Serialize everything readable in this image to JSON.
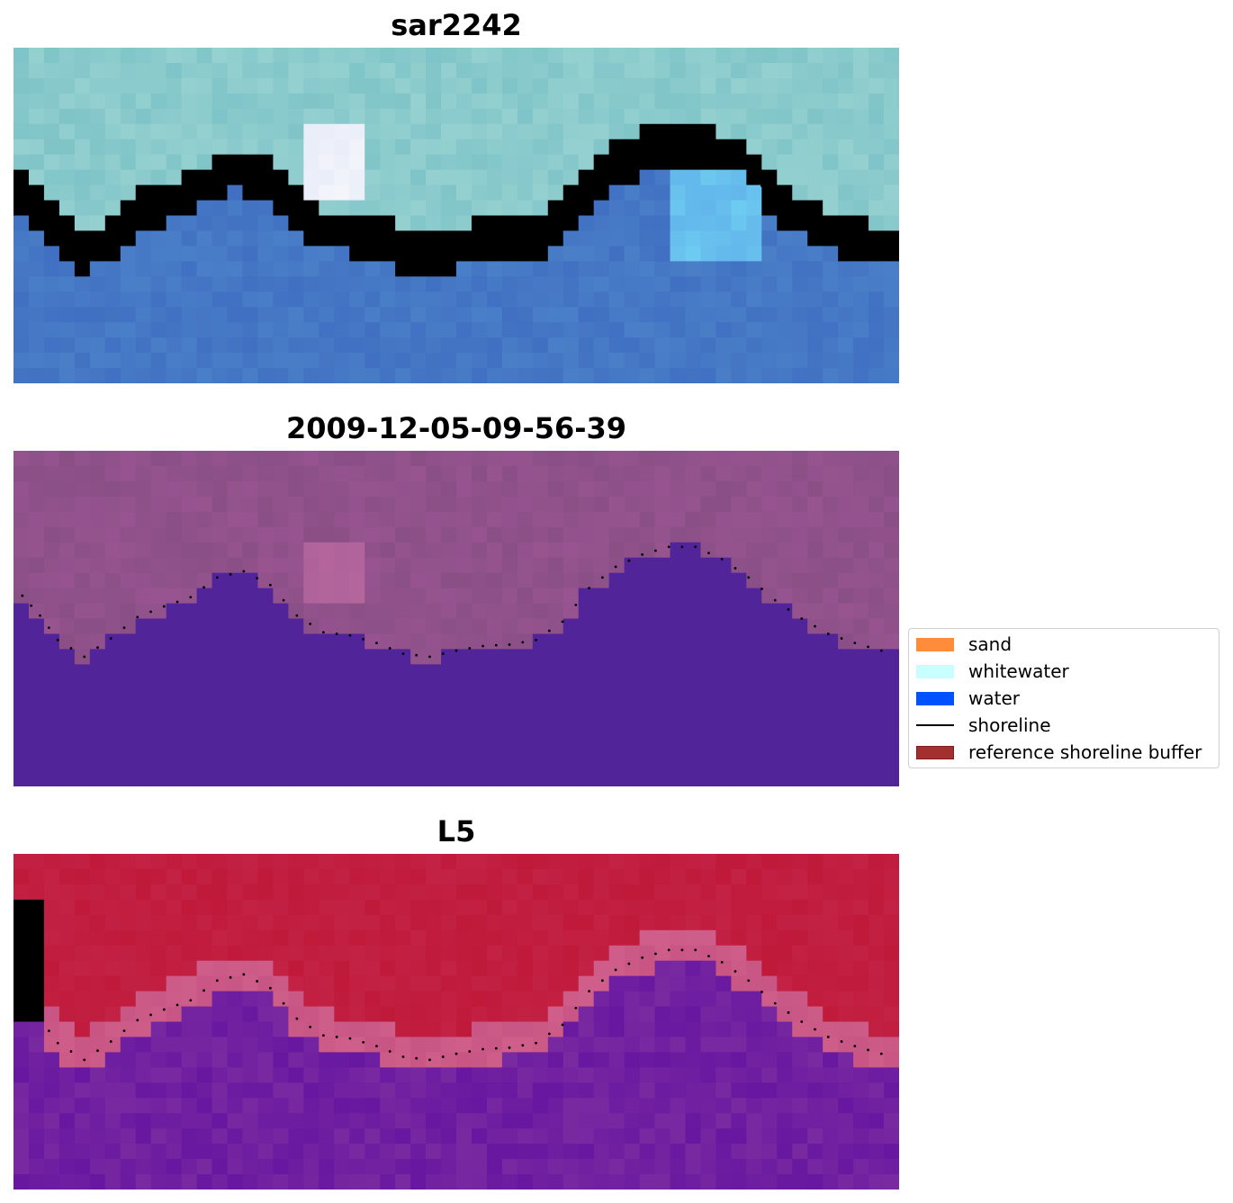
{
  "chart_data": [
    {
      "type": "heatmap",
      "title": "sar2242",
      "description": "false-colour satellite image tile with shoreline points overlaid",
      "axes_visible": false,
      "palette": {
        "land": "#7fc4c8",
        "water": "#4a7fc8",
        "whitewater": "#f4f4fb",
        "bright_water": "#6ecbf0"
      },
      "shoreline": {
        "x": [
          1,
          3,
          5,
          8,
          11,
          14,
          17,
          20,
          23,
          26,
          29,
          32,
          35,
          38,
          41,
          44,
          47,
          50,
          53,
          56,
          59,
          62,
          65,
          68,
          71,
          74,
          77,
          80,
          83,
          86,
          89,
          92,
          95,
          98
        ],
        "y": [
          9.5,
          10.8,
          12.4,
          13.5,
          12.3,
          10.9,
          10.2,
          9.6,
          8.3,
          7.9,
          8.8,
          10.8,
          11.9,
          12.1,
          12.6,
          13.3,
          13.5,
          13.1,
          12.8,
          12.7,
          12.4,
          11.2,
          9.0,
          7.6,
          6.8,
          6.3,
          6.3,
          7.1,
          8.3,
          9.8,
          11.0,
          12.0,
          12.6,
          13.1
        ]
      },
      "shoreline_style": "dotted"
    },
    {
      "type": "heatmap",
      "title": "2009-12-05-09-56-39",
      "description": "classified image tile (water / land) with shoreline points overlaid",
      "axes_visible": false,
      "palette": {
        "land": "#8a4f86",
        "land_light": "#9a5592",
        "water": "#51249a",
        "highlight": "#b5679d"
      },
      "shoreline": {
        "x": [
          1,
          3,
          5,
          8,
          11,
          14,
          17,
          20,
          23,
          26,
          29,
          32,
          35,
          38,
          41,
          44,
          47,
          50,
          53,
          56,
          59,
          62,
          65,
          68,
          71,
          74,
          77,
          80,
          83,
          86,
          89,
          92,
          95,
          98
        ],
        "y": [
          9.5,
          10.8,
          12.4,
          13.5,
          12.3,
          10.9,
          10.2,
          9.6,
          8.3,
          7.9,
          8.8,
          10.8,
          11.9,
          12.1,
          12.6,
          13.3,
          13.5,
          13.1,
          12.8,
          12.7,
          12.4,
          11.2,
          9.0,
          7.6,
          6.8,
          6.3,
          6.3,
          7.1,
          8.3,
          9.8,
          11.0,
          12.0,
          12.6,
          13.1
        ]
      },
      "shoreline_style": "dotted"
    },
    {
      "type": "heatmap",
      "title": "L5",
      "description": "probability-style colour tile (red land / purple water) with shoreline points overlaid",
      "axes_visible": false,
      "palette": {
        "land": "#c0193a",
        "edge": "#cf5f8a",
        "water": "#7a2aa0",
        "deep_water": "#5a0aa0"
      },
      "shoreline": {
        "x": [
          1,
          3,
          5,
          8,
          11,
          14,
          17,
          20,
          23,
          26,
          29,
          32,
          35,
          38,
          41,
          44,
          47,
          50,
          53,
          56,
          59,
          62,
          65,
          68,
          71,
          74,
          77,
          80,
          83,
          86,
          89,
          92,
          95,
          98
        ],
        "y": [
          9.5,
          10.8,
          12.4,
          13.5,
          12.3,
          10.9,
          10.2,
          9.6,
          8.3,
          7.9,
          8.8,
          10.8,
          11.9,
          12.1,
          12.6,
          13.3,
          13.5,
          13.1,
          12.8,
          12.7,
          12.4,
          11.2,
          9.0,
          7.6,
          6.8,
          6.3,
          6.3,
          7.1,
          8.3,
          9.8,
          11.0,
          12.0,
          12.6,
          13.1
        ]
      },
      "shoreline_style": "dotted"
    }
  ],
  "legend": {
    "placement": "center-right",
    "items": [
      {
        "label": "sand",
        "color": "#ff8c3a",
        "kind": "patch"
      },
      {
        "label": "whitewater",
        "color": "#c8ffff",
        "kind": "patch"
      },
      {
        "label": "water",
        "color": "#0052ff",
        "kind": "patch"
      },
      {
        "label": "shoreline",
        "color": "#000000",
        "kind": "line"
      },
      {
        "label": "reference shoreline buffer",
        "color": "#a3302e",
        "kind": "patch"
      }
    ]
  }
}
